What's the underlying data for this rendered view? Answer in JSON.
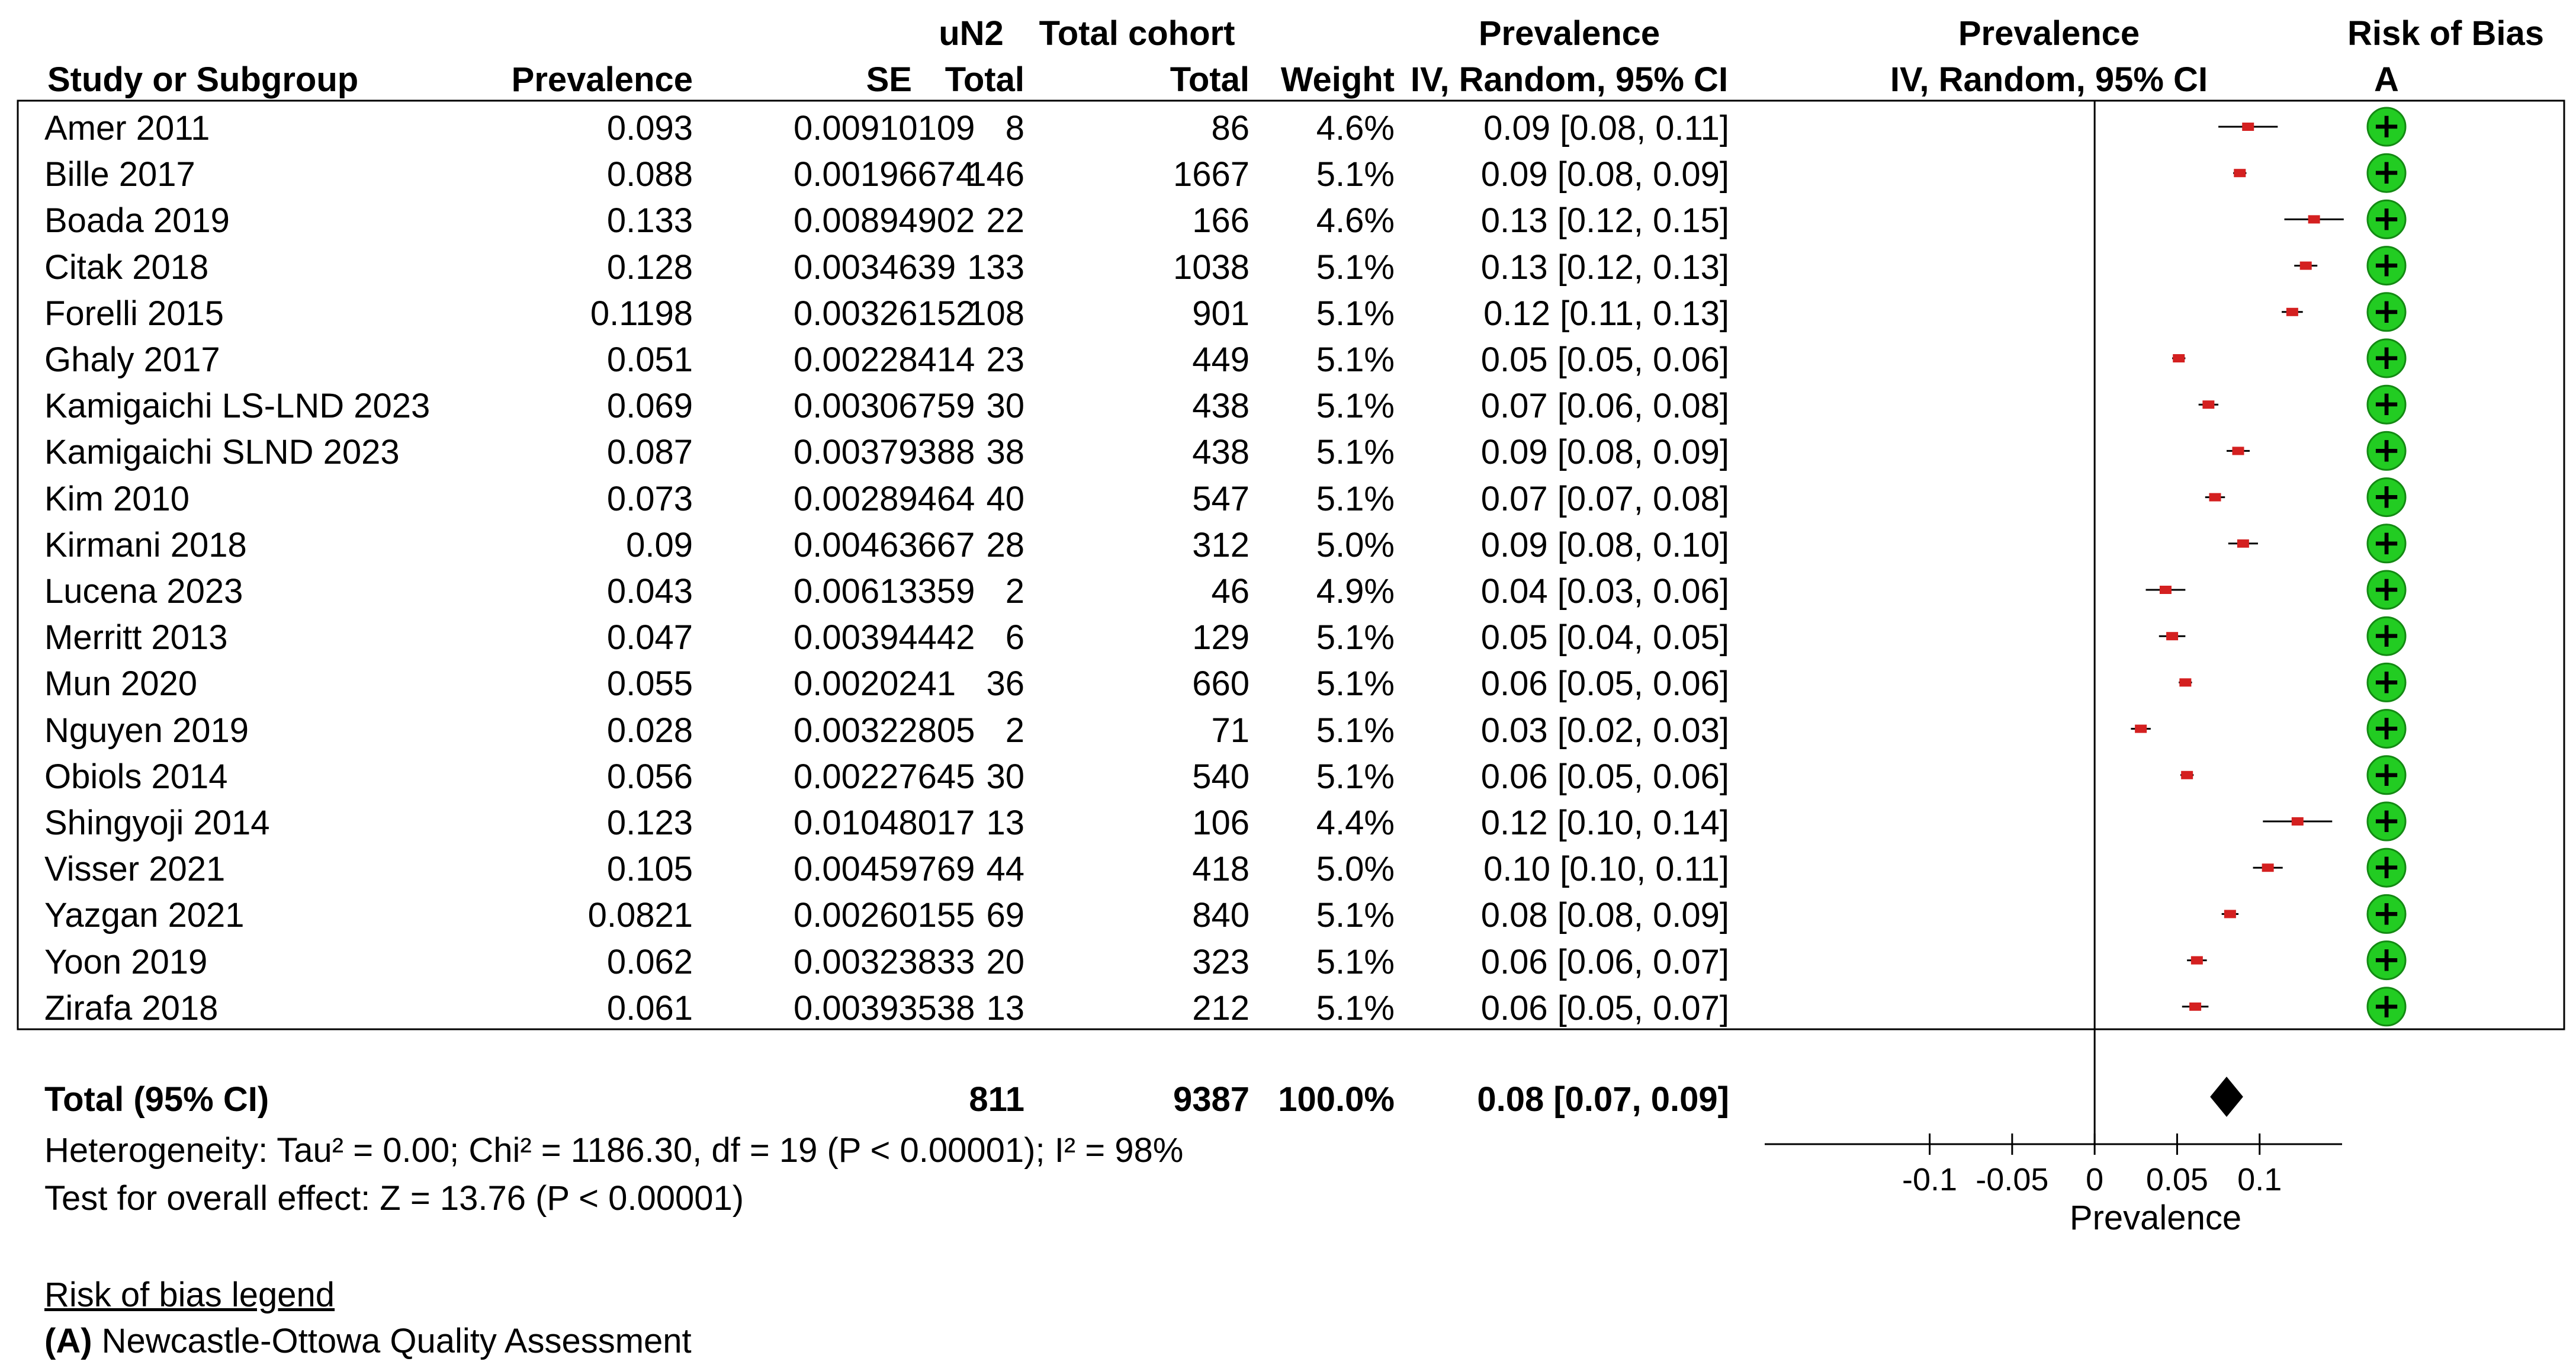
{
  "header": {
    "row1": {
      "un2": "uN2",
      "total_cohort": "Total cohort",
      "prevalence": "Prevalence",
      "plot_prevalence": "Prevalence",
      "risk_of_bias": "Risk of Bias"
    },
    "row2": {
      "study": "Study or Subgroup",
      "prevalence": "Prevalence",
      "se": "SE",
      "total_un2": "Total",
      "total_cohort": "Total",
      "weight": "Weight",
      "ci": "IV, Random, 95% CI",
      "plot_ci": "IV, Random, 95% CI",
      "rob": "A"
    }
  },
  "chart_data": {
    "type": "forest",
    "xlabel": "Prevalence",
    "xlim": [
      -0.2,
      0.15
    ],
    "ticks": [
      {
        "value": -0.1,
        "label": "-0.1"
      },
      {
        "value": -0.05,
        "label": "-0.05"
      },
      {
        "value": 0,
        "label": "0"
      },
      {
        "value": 0.05,
        "label": "0.05"
      },
      {
        "value": 0.1,
        "label": "0.1"
      }
    ],
    "marker_color": "#d42020",
    "rob_color": "#22cc22",
    "studies": [
      {
        "name": "Amer 2011",
        "prevalence": "0.093",
        "se": "0.00910109",
        "un2": "8",
        "total": "86",
        "weight": "4.6%",
        "ci_text": "0.09 [0.08, 0.11]",
        "est": 0.093,
        "lo": 0.075,
        "hi": 0.111,
        "rob": "+"
      },
      {
        "name": "Bille 2017",
        "prevalence": "0.088",
        "se": "0.00196674",
        "un2": "146",
        "total": "1667",
        "weight": "5.1%",
        "ci_text": "0.09 [0.08, 0.09]",
        "est": 0.088,
        "lo": 0.084,
        "hi": 0.092,
        "rob": "+"
      },
      {
        "name": "Boada 2019",
        "prevalence": "0.133",
        "se": "0.00894902",
        "un2": "22",
        "total": "166",
        "weight": "4.6%",
        "ci_text": "0.13 [0.12, 0.15]",
        "est": 0.133,
        "lo": 0.115,
        "hi": 0.151,
        "rob": "+"
      },
      {
        "name": "Citak 2018",
        "prevalence": "0.128",
        "se": "0.0034639",
        "un2": "133",
        "total": "1038",
        "weight": "5.1%",
        "ci_text": "0.13 [0.12, 0.13]",
        "est": 0.128,
        "lo": 0.121,
        "hi": 0.135,
        "rob": "+"
      },
      {
        "name": "Forelli 2015",
        "prevalence": "0.1198",
        "se": "0.00326152",
        "un2": "108",
        "total": "901",
        "weight": "5.1%",
        "ci_text": "0.12 [0.11, 0.13]",
        "est": 0.1198,
        "lo": 0.1134,
        "hi": 0.1262,
        "rob": "+"
      },
      {
        "name": "Ghaly 2017",
        "prevalence": "0.051",
        "se": "0.00228414",
        "un2": "23",
        "total": "449",
        "weight": "5.1%",
        "ci_text": "0.05 [0.05, 0.06]",
        "est": 0.051,
        "lo": 0.047,
        "hi": 0.055,
        "rob": "+"
      },
      {
        "name": "Kamigaichi LS-LND 2023",
        "prevalence": "0.069",
        "se": "0.00306759",
        "un2": "30",
        "total": "438",
        "weight": "5.1%",
        "ci_text": "0.07 [0.06, 0.08]",
        "est": 0.069,
        "lo": 0.063,
        "hi": 0.075,
        "rob": "+"
      },
      {
        "name": "Kamigaichi SLND 2023",
        "prevalence": "0.087",
        "se": "0.00379388",
        "un2": "38",
        "total": "438",
        "weight": "5.1%",
        "ci_text": "0.09 [0.08, 0.09]",
        "est": 0.087,
        "lo": 0.08,
        "hi": 0.094,
        "rob": "+"
      },
      {
        "name": "Kim 2010",
        "prevalence": "0.073",
        "se": "0.00289464",
        "un2": "40",
        "total": "547",
        "weight": "5.1%",
        "ci_text": "0.07 [0.07, 0.08]",
        "est": 0.073,
        "lo": 0.067,
        "hi": 0.079,
        "rob": "+"
      },
      {
        "name": "Kirmani 2018",
        "prevalence": "0.09",
        "se": "0.00463667",
        "un2": "28",
        "total": "312",
        "weight": "5.0%",
        "ci_text": "0.09 [0.08, 0.10]",
        "est": 0.09,
        "lo": 0.081,
        "hi": 0.099,
        "rob": "+"
      },
      {
        "name": "Lucena 2023",
        "prevalence": "0.043",
        "se": "0.00613359",
        "un2": "2",
        "total": "46",
        "weight": "4.9%",
        "ci_text": "0.04 [0.03, 0.06]",
        "est": 0.043,
        "lo": 0.031,
        "hi": 0.055,
        "rob": "+"
      },
      {
        "name": "Merritt 2013",
        "prevalence": "0.047",
        "se": "0.00394442",
        "un2": "6",
        "total": "129",
        "weight": "5.1%",
        "ci_text": "0.05 [0.04, 0.05]",
        "est": 0.047,
        "lo": 0.039,
        "hi": 0.055,
        "rob": "+"
      },
      {
        "name": "Mun 2020",
        "prevalence": "0.055",
        "se": "0.0020241",
        "un2": "36",
        "total": "660",
        "weight": "5.1%",
        "ci_text": "0.06 [0.05, 0.06]",
        "est": 0.055,
        "lo": 0.051,
        "hi": 0.059,
        "rob": "+"
      },
      {
        "name": "Nguyen 2019",
        "prevalence": "0.028",
        "se": "0.00322805",
        "un2": "2",
        "total": "71",
        "weight": "5.1%",
        "ci_text": "0.03 [0.02, 0.03]",
        "est": 0.028,
        "lo": 0.022,
        "hi": 0.034,
        "rob": "+"
      },
      {
        "name": "Obiols 2014",
        "prevalence": "0.056",
        "se": "0.00227645",
        "un2": "30",
        "total": "540",
        "weight": "5.1%",
        "ci_text": "0.06 [0.05, 0.06]",
        "est": 0.056,
        "lo": 0.052,
        "hi": 0.06,
        "rob": "+"
      },
      {
        "name": "Shingyoji 2014",
        "prevalence": "0.123",
        "se": "0.01048017",
        "un2": "13",
        "total": "106",
        "weight": "4.4%",
        "ci_text": "0.12 [0.10, 0.14]",
        "est": 0.123,
        "lo": 0.102,
        "hi": 0.144,
        "rob": "+"
      },
      {
        "name": "Visser 2021",
        "prevalence": "0.105",
        "se": "0.00459769",
        "un2": "44",
        "total": "418",
        "weight": "5.0%",
        "ci_text": "0.10 [0.10, 0.11]",
        "est": 0.105,
        "lo": 0.096,
        "hi": 0.114,
        "rob": "+"
      },
      {
        "name": "Yazgan 2021",
        "prevalence": "0.0821",
        "se": "0.00260155",
        "un2": "69",
        "total": "840",
        "weight": "5.1%",
        "ci_text": "0.08 [0.08, 0.09]",
        "est": 0.0821,
        "lo": 0.077,
        "hi": 0.0872,
        "rob": "+"
      },
      {
        "name": "Yoon 2019",
        "prevalence": "0.062",
        "se": "0.00323833",
        "un2": "20",
        "total": "323",
        "weight": "5.1%",
        "ci_text": "0.06 [0.06, 0.07]",
        "est": 0.062,
        "lo": 0.056,
        "hi": 0.068,
        "rob": "+"
      },
      {
        "name": "Zirafa 2018",
        "prevalence": "0.061",
        "se": "0.00393538",
        "un2": "13",
        "total": "212",
        "weight": "5.1%",
        "ci_text": "0.06 [0.05, 0.07]",
        "est": 0.061,
        "lo": 0.053,
        "hi": 0.069,
        "rob": "+"
      }
    ],
    "total": {
      "name": "Total (95% CI)",
      "un2": "811",
      "total": "9387",
      "weight": "100.0%",
      "ci_text": "0.08 [0.07, 0.09]",
      "est": 0.08,
      "lo": 0.07,
      "hi": 0.09
    },
    "heterogeneity": "Heterogeneity: Tau² = 0.00; Chi² = 1186.30, df = 19 (P < 0.00001); I² = 98%",
    "overall_effect": "Test for overall effect: Z = 13.76 (P < 0.00001)"
  },
  "legend": {
    "title": "Risk of bias legend",
    "letter": "(A)",
    "text": " Newcastle-Ottowa Quality Assessment"
  }
}
